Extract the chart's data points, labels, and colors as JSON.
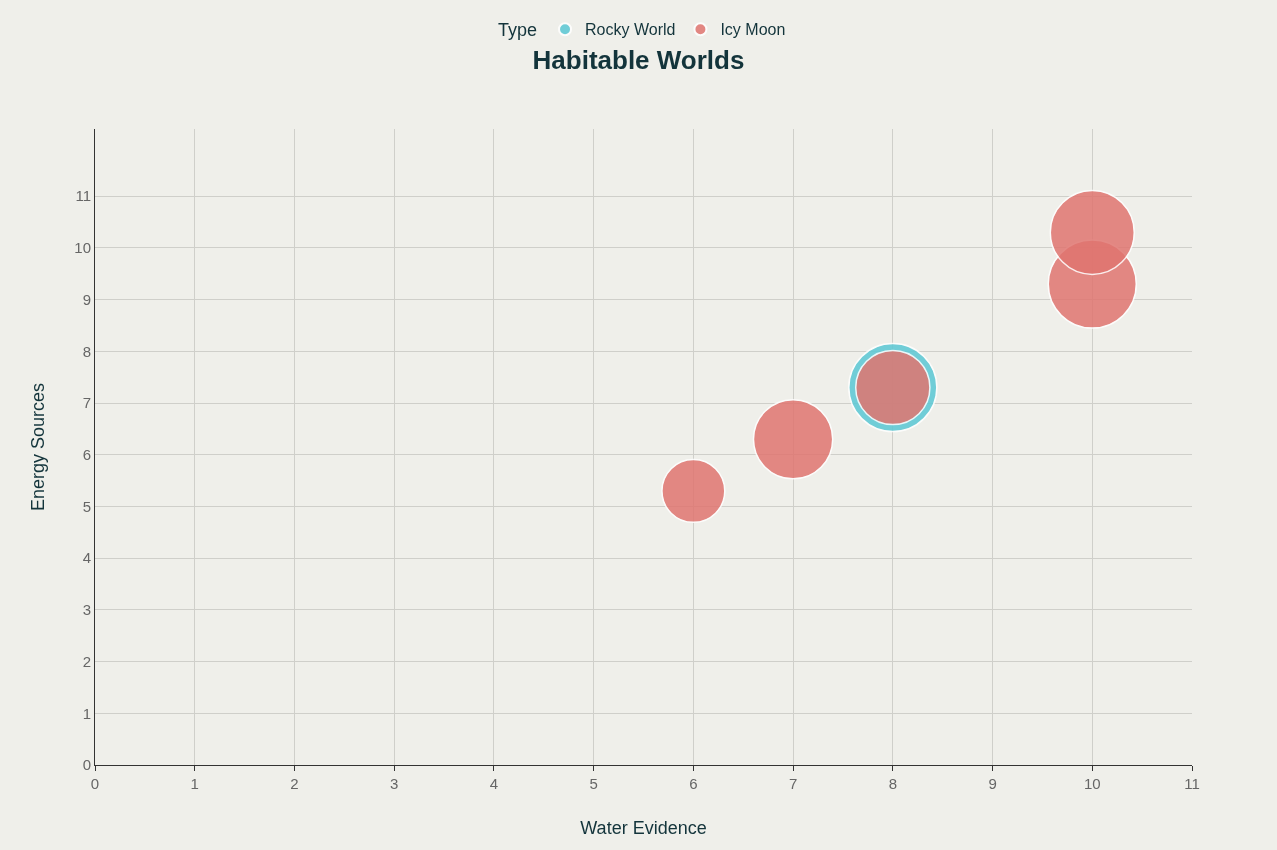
{
  "chart_data": {
    "type": "bubble",
    "title": "Habitable Worlds",
    "xlabel": "Water Evidence",
    "ylabel": "Energy Sources",
    "legend_title": "Type",
    "legend": "top",
    "grid": true,
    "xlim": [
      0,
      11
    ],
    "xticks": [
      0,
      1,
      2,
      3,
      4,
      5,
      6,
      7,
      8,
      9,
      10,
      11
    ],
    "ylim": [
      0,
      12.3
    ],
    "yticks": [
      0,
      1,
      2,
      3,
      4,
      5,
      6,
      7,
      8,
      9,
      10,
      11
    ],
    "series": [
      {
        "name": "Rocky World",
        "color": "#5bc8d4",
        "x": [
          8
        ],
        "values": [
          7.3
        ],
        "sizes": [
          1
        ]
      },
      {
        "name": "Icy Moon",
        "color": "#e07570",
        "x": [
          6,
          7,
          8,
          10,
          10
        ],
        "values": [
          5.3,
          6.3,
          7.3,
          9.3,
          10.3
        ],
        "sizes": [
          0.51,
          0.81,
          0.71,
          1,
          0.91
        ]
      }
    ]
  }
}
